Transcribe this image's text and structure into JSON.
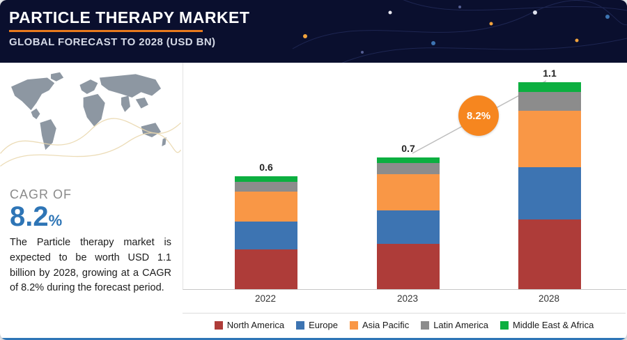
{
  "header": {
    "title": "PARTICLE THERAPY MARKET",
    "subtitle": "GLOBAL FORECAST TO 2028 (USD BN)"
  },
  "sidebar": {
    "cagr_label": "CAGR OF",
    "cagr_value": "8.2",
    "cagr_percent": "%",
    "description": "The Particle therapy market is expected to be worth USD 1.1 billion by 2028, growing at a CAGR of 8.2% during the forecast period."
  },
  "chart_data": {
    "type": "bar",
    "stacked": true,
    "title": "Particle Therapy Market, Global Forecast to 2028 (USD BN)",
    "categories": [
      "2022",
      "2023",
      "2028"
    ],
    "totals": [
      "0.6",
      "0.7",
      "1.1"
    ],
    "series": [
      {
        "name": "North America",
        "color": "#ae3c39",
        "values": [
          0.21,
          0.24,
          0.37
        ]
      },
      {
        "name": "Europe",
        "color": "#3d74b2",
        "values": [
          0.15,
          0.18,
          0.28
        ]
      },
      {
        "name": "Asia Pacific",
        "color": "#f99746",
        "values": [
          0.16,
          0.19,
          0.3
        ]
      },
      {
        "name": "Latin America",
        "color": "#8c8c8c",
        "values": [
          0.05,
          0.06,
          0.1
        ]
      },
      {
        "name": "Middle East & Africa",
        "color": "#0caf40",
        "values": [
          0.03,
          0.03,
          0.05
        ]
      }
    ],
    "annotation": {
      "label": "8.2%",
      "color": "#f6861f"
    },
    "ylim": [
      0,
      1.2
    ],
    "xlabel": "",
    "ylabel": "",
    "legend_position": "bottom",
    "grid": false
  }
}
